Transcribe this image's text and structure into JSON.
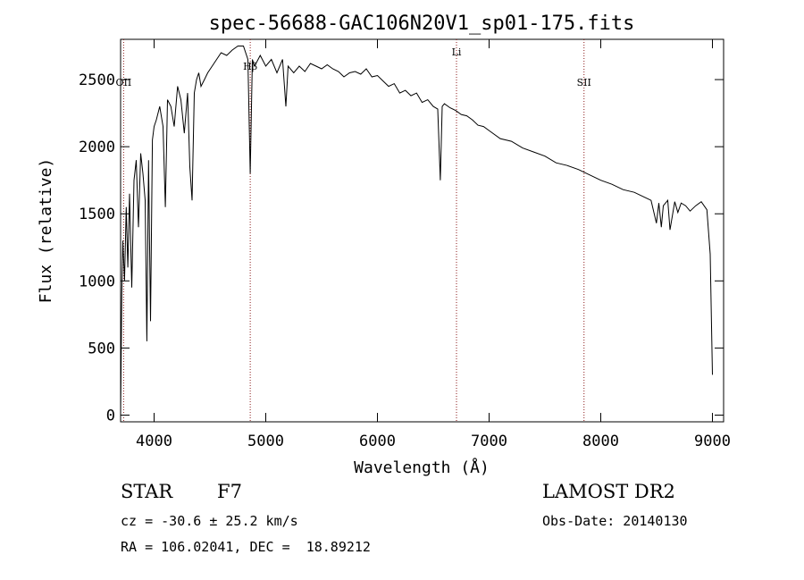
{
  "chart_data": {
    "type": "line",
    "title": "spec-56688-GAC106N20V1_sp01-175.fits",
    "xlabel": "Wavelength (Å)",
    "ylabel": "Flux (relative)",
    "xlim": [
      3700,
      9100
    ],
    "ylim": [
      -50,
      2800
    ],
    "xticks": [
      "4000",
      "5000",
      "6000",
      "7000",
      "8000",
      "9000"
    ],
    "yticks": [
      "0",
      "500",
      "1000",
      "1500",
      "2000",
      "2500"
    ],
    "xtick_values": [
      4000,
      5000,
      6000,
      7000,
      8000,
      9000
    ],
    "ytick_values": [
      0,
      500,
      1000,
      1500,
      2000,
      2500
    ],
    "line_color": "#000000",
    "marker_color": "#8b1a1a",
    "grid": false,
    "series": [
      {
        "x": [
          3700,
          3710,
          3720,
          3735,
          3750,
          3765,
          3780,
          3800,
          3820,
          3840,
          3860,
          3880,
          3900,
          3920,
          3935,
          3950,
          3968,
          3985,
          4000,
          4020,
          4050,
          4080,
          4101,
          4120,
          4150,
          4180,
          4210,
          4240,
          4270,
          4300,
          4320,
          4340,
          4360,
          4380,
          4400,
          4420,
          4450,
          4480,
          4520,
          4560,
          4600,
          4650,
          4700,
          4750,
          4800,
          4840,
          4861,
          4880,
          4900,
          4950,
          5000,
          5050,
          5100,
          5150,
          5180,
          5200,
          5250,
          5300,
          5350,
          5400,
          5450,
          5500,
          5550,
          5600,
          5650,
          5700,
          5750,
          5800,
          5850,
          5900,
          5950,
          6000,
          6050,
          6100,
          6150,
          6200,
          6250,
          6300,
          6350,
          6400,
          6450,
          6500,
          6540,
          6563,
          6580,
          6600,
          6650,
          6700,
          6750,
          6800,
          6850,
          6900,
          6950,
          7000,
          7100,
          7200,
          7300,
          7400,
          7500,
          7600,
          7700,
          7800,
          7900,
          8000,
          8100,
          8200,
          8300,
          8400,
          8450,
          8498,
          8520,
          8542,
          8560,
          8600,
          8620,
          8662,
          8690,
          8720,
          8760,
          8800,
          8850,
          8900,
          8950,
          8980,
          9000
        ],
        "y": [
          0,
          900,
          1300,
          1000,
          1550,
          1100,
          1650,
          950,
          1750,
          1900,
          1400,
          1950,
          1800,
          1600,
          550,
          1900,
          700,
          2050,
          2150,
          2200,
          2300,
          2150,
          1550,
          2350,
          2300,
          2150,
          2450,
          2350,
          2100,
          2400,
          1850,
          1600,
          2400,
          2500,
          2550,
          2450,
          2500,
          2550,
          2600,
          2650,
          2700,
          2680,
          2720,
          2750,
          2750,
          2650,
          1800,
          2650,
          2600,
          2680,
          2600,
          2650,
          2550,
          2650,
          2300,
          2600,
          2550,
          2600,
          2560,
          2620,
          2600,
          2580,
          2610,
          2580,
          2560,
          2520,
          2550,
          2560,
          2540,
          2580,
          2520,
          2530,
          2490,
          2450,
          2470,
          2400,
          2420,
          2380,
          2400,
          2330,
          2350,
          2300,
          2280,
          1750,
          2300,
          2320,
          2290,
          2270,
          2240,
          2230,
          2200,
          2160,
          2150,
          2120,
          2060,
          2040,
          1990,
          1960,
          1930,
          1880,
          1860,
          1830,
          1790,
          1750,
          1720,
          1680,
          1660,
          1620,
          1600,
          1430,
          1580,
          1400,
          1560,
          1600,
          1380,
          1590,
          1510,
          1580,
          1560,
          1520,
          1560,
          1590,
          1530,
          1200,
          300
        ]
      }
    ],
    "line_markers": [
      {
        "label": "OII",
        "x": 3727
      },
      {
        "label": "Hβ",
        "x": 4861
      },
      {
        "label": "Li",
        "x": 6708
      },
      {
        "label": "SII",
        "x": 7850
      }
    ]
  },
  "info": {
    "class_label": "STAR",
    "subclass": "F7",
    "cz": "cz = -30.6 ± 25.2 km/s",
    "radec": "RA = 106.02041, DEC =  18.89212",
    "survey": "LAMOST DR2",
    "obs_date": "Obs-Date: 20140130"
  }
}
